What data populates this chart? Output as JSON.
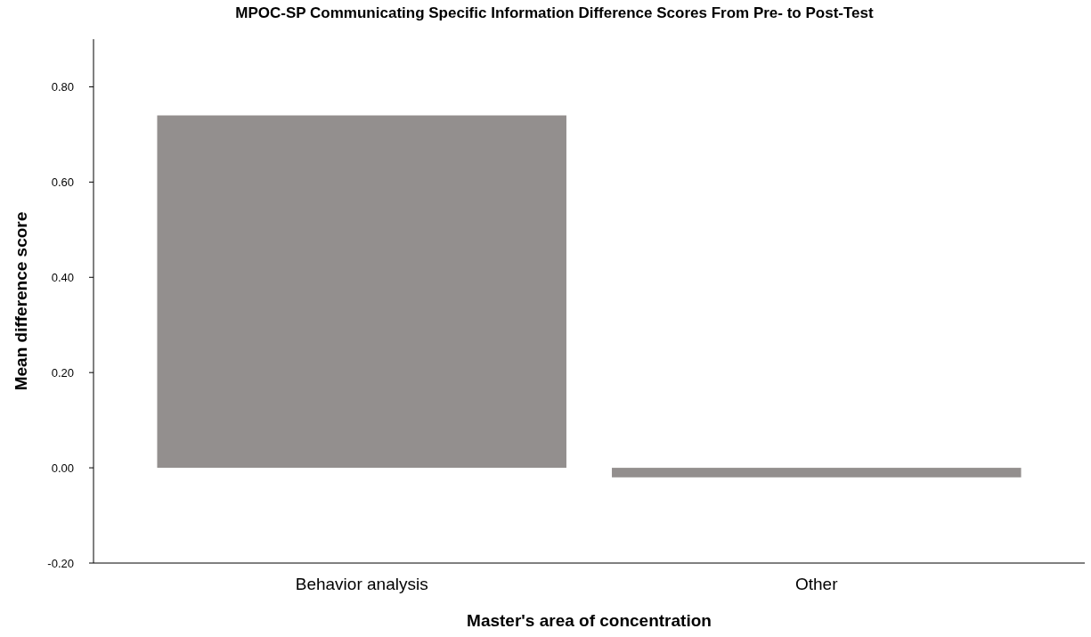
{
  "chart_data": {
    "type": "bar",
    "title": "MPOC-SP Communicating Specific Information Difference Scores From Pre- to Post-Test",
    "xlabel": "Master's area of concentration",
    "ylabel": "Mean difference score",
    "categories": [
      "Behavior analysis",
      "Other"
    ],
    "values": [
      0.74,
      -0.02
    ],
    "color": "#938f8e",
    "ylim": [
      -0.2,
      0.9
    ],
    "yticks": [
      {
        "value": -0.2,
        "label": "-0.20"
      },
      {
        "value": 0,
        "label": "0.00"
      },
      {
        "value": 0.2,
        "label": "0.20"
      },
      {
        "value": 0.4,
        "label": "0.40"
      },
      {
        "value": 0.6,
        "label": "0.60"
      },
      {
        "value": 0.8,
        "label": "0.80"
      }
    ],
    "grid": false
  }
}
